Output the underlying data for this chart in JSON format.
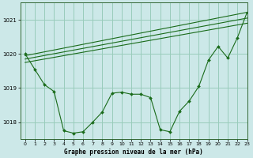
{
  "background_color": "#cce8e8",
  "grid_color": "#99ccbb",
  "line_color": "#1a6b1a",
  "title": "Graphe pression niveau de la mer (hPa)",
  "ylim": [
    1017.5,
    1021.5
  ],
  "xlim": [
    -0.5,
    23
  ],
  "yticks": [
    1018,
    1019,
    1020,
    1021
  ],
  "xticks": [
    0,
    1,
    2,
    3,
    4,
    5,
    6,
    7,
    8,
    9,
    10,
    11,
    12,
    13,
    14,
    15,
    16,
    17,
    18,
    19,
    20,
    21,
    22,
    23
  ],
  "detail_x": [
    0,
    1,
    2,
    3,
    4,
    5,
    6,
    7,
    8,
    9,
    10,
    11,
    12,
    13,
    14,
    15,
    16,
    17,
    18,
    19,
    20,
    21,
    22,
    23
  ],
  "detail_y": [
    1020.0,
    1019.55,
    1019.1,
    1018.9,
    1017.75,
    1017.68,
    1017.72,
    1018.0,
    1018.3,
    1018.85,
    1018.88,
    1018.82,
    1018.82,
    1018.72,
    1017.78,
    1017.72,
    1018.32,
    1018.62,
    1019.05,
    1019.82,
    1020.22,
    1019.88,
    1020.48,
    1021.22
  ],
  "trend1_x": [
    0,
    23
  ],
  "trend1_y": [
    1019.95,
    1021.22
  ],
  "trend2_x": [
    0,
    23
  ],
  "trend2_y": [
    1019.85,
    1021.05
  ],
  "trend3_x": [
    0,
    23
  ],
  "trend3_y": [
    1019.75,
    1020.9
  ]
}
